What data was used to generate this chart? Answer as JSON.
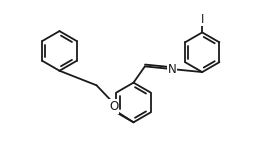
{
  "line_color": "#1a1a1a",
  "bg_color": "#ffffff",
  "line_width": 1.3,
  "font_size": 8.5,
  "label_color": "#1a1a1a",
  "figsize": [
    2.67,
    1.6
  ],
  "dpi": 100,
  "r": 0.75,
  "xlim": [
    0.0,
    10.0
  ],
  "ylim": [
    0.0,
    6.0
  ]
}
